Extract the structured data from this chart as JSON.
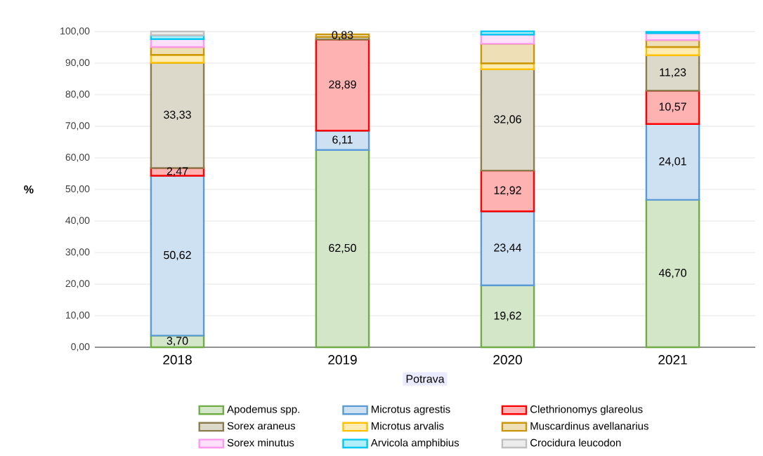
{
  "chart_data": {
    "type": "bar",
    "stacked": true,
    "categories": [
      "2018",
      "2019",
      "2020",
      "2021"
    ],
    "xlabel": "Potrava",
    "ylabel": "%",
    "ylim": [
      0,
      100
    ],
    "yticks": [
      {
        "value": 0,
        "label": "0,00"
      },
      {
        "value": 10,
        "label": "10,00"
      },
      {
        "value": 20,
        "label": "20,00"
      },
      {
        "value": 30,
        "label": "30,00"
      },
      {
        "value": 40,
        "label": "40,00"
      },
      {
        "value": 50,
        "label": "50,00"
      },
      {
        "value": 60,
        "label": "60,00"
      },
      {
        "value": 70,
        "label": "70,00"
      },
      {
        "value": 80,
        "label": "80,00"
      },
      {
        "value": 90,
        "label": "90,00"
      },
      {
        "value": 100,
        "label": "100,00"
      }
    ],
    "grid": "y",
    "legend": "bottom",
    "series": [
      {
        "name": "Apodemus spp.",
        "color": "#70ad47",
        "values": [
          3.7,
          62.5,
          19.62,
          46.7
        ],
        "value_labels": [
          "3,70",
          "62,50",
          "19,62",
          "46,70"
        ]
      },
      {
        "name": "Microtus agrestis",
        "color": "#5b9bd5",
        "values": [
          50.62,
          6.11,
          23.44,
          24.01
        ],
        "value_labels": [
          "50,62",
          "6,11",
          "23,44",
          "24,01"
        ]
      },
      {
        "name": "Clethrionomys glareolus",
        "color": "#ff0000",
        "values": [
          2.47,
          28.89,
          12.92,
          10.57
        ],
        "value_labels": [
          "2,47",
          "28,89",
          "12,92",
          "10,57"
        ]
      },
      {
        "name": "Sorex araneus",
        "color": "#8b7d4f",
        "values": [
          33.33,
          0.8,
          32.06,
          11.23
        ],
        "value_labels": [
          "33,33",
          null,
          "32,06",
          "11,23"
        ]
      },
      {
        "name": "Microtus arvalis",
        "color": "#ffc000",
        "values": [
          2.5,
          null,
          1.9,
          2.6
        ]
      },
      {
        "name": "Muscardinus avellanarius",
        "color": "#c9960c",
        "values": [
          2.5,
          0.83,
          6.2,
          2.2
        ],
        "value_labels": [
          null,
          "0,83",
          null,
          null
        ]
      },
      {
        "name": "Sorex minutus",
        "color": "#ff99ee",
        "values": [
          2.5,
          null,
          2.9,
          2.2
        ]
      },
      {
        "name": "Arvicola amphibius",
        "color": "#00c8f0",
        "values": [
          1.2,
          null,
          1.0,
          0.4
        ]
      },
      {
        "name": "Crocidura leucodon",
        "color": "#c0c0c0",
        "values": [
          1.2,
          null,
          null,
          null
        ]
      }
    ]
  }
}
